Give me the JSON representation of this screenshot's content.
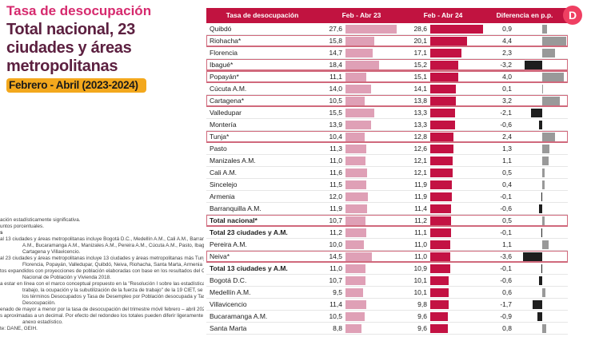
{
  "header": {
    "title": "Tasa de desocupación",
    "subtitle": "Total nacional, 23 ciudades y áreas metropolitanas",
    "period": "Febrero - Abril (2023-2024)"
  },
  "logo": {
    "letter": "D",
    "name": "DANE"
  },
  "table": {
    "columns": [
      "Tasa de desocupación",
      "Feb - Abr 23",
      "Feb - Abr 24",
      "Diferencia en p.p."
    ],
    "rows": [
      {
        "label": "Quibdó",
        "v23": "27,6",
        "v24": "28,6",
        "diff": "0,9",
        "bold": false,
        "highlight": false
      },
      {
        "label": "Riohacha*",
        "v23": "15,8",
        "v24": "20,1",
        "diff": "4,4",
        "bold": false,
        "highlight": true
      },
      {
        "label": "Florencia",
        "v23": "14,7",
        "v24": "17,1",
        "diff": "2,3",
        "bold": false,
        "highlight": false
      },
      {
        "label": "Ibagué*",
        "v23": "18,4",
        "v24": "15,2",
        "diff": "-3,2",
        "bold": false,
        "highlight": true
      },
      {
        "label": "Popayán*",
        "v23": "11,1",
        "v24": "15,1",
        "diff": "4,0",
        "bold": false,
        "highlight": true
      },
      {
        "label": "Cúcuta A.M.",
        "v23": "14,0",
        "v24": "14,1",
        "diff": "0,1",
        "bold": false,
        "highlight": false
      },
      {
        "label": "Cartagena*",
        "v23": "10,5",
        "v24": "13,8",
        "diff": "3,2",
        "bold": false,
        "highlight": true
      },
      {
        "label": "Valledupar",
        "v23": "15,5",
        "v24": "13,3",
        "diff": "-2,1",
        "bold": false,
        "highlight": false
      },
      {
        "label": "Montería",
        "v23": "13,9",
        "v24": "13,3",
        "diff": "-0,6",
        "bold": false,
        "highlight": false
      },
      {
        "label": "Tunja*",
        "v23": "10,4",
        "v24": "12,8",
        "diff": "2,4",
        "bold": false,
        "highlight": true
      },
      {
        "label": "Pasto",
        "v23": "11,3",
        "v24": "12,6",
        "diff": "1,3",
        "bold": false,
        "highlight": false
      },
      {
        "label": "Manizales A.M.",
        "v23": "11,0",
        "v24": "12,1",
        "diff": "1,1",
        "bold": false,
        "highlight": false
      },
      {
        "label": "Cali A.M.",
        "v23": "11,6",
        "v24": "12,1",
        "diff": "0,5",
        "bold": false,
        "highlight": false
      },
      {
        "label": "Sincelejo",
        "v23": "11,5",
        "v24": "11,9",
        "diff": "0,4",
        "bold": false,
        "highlight": false
      },
      {
        "label": "Armenia",
        "v23": "12,0",
        "v24": "11,9",
        "diff": "-0,1",
        "bold": false,
        "highlight": false
      },
      {
        "label": "Barranquilla A.M.",
        "v23": "11,9",
        "v24": "11,4",
        "diff": "-0,6",
        "bold": false,
        "highlight": false
      },
      {
        "label": "Total nacional*",
        "v23": "10,7",
        "v24": "11,2",
        "diff": "0,5",
        "bold": true,
        "highlight": true
      },
      {
        "label": "Total 23 ciudades y A.M.",
        "v23": "11,2",
        "v24": "11,1",
        "diff": "-0,1",
        "bold": true,
        "highlight": false
      },
      {
        "label": "Pereira A.M.",
        "v23": "10,0",
        "v24": "11,0",
        "diff": "1,1",
        "bold": false,
        "highlight": false
      },
      {
        "label": "Neiva*",
        "v23": "14,5",
        "v24": "11,0",
        "diff": "-3,6",
        "bold": false,
        "highlight": true
      },
      {
        "label": "Total 13 ciudades y A.M.",
        "v23": "11,0",
        "v24": "10,9",
        "diff": "-0,1",
        "bold": true,
        "highlight": false
      },
      {
        "label": "Bogotá D.C.",
        "v23": "10,7",
        "v24": "10,1",
        "diff": "-0,6",
        "bold": false,
        "highlight": false
      },
      {
        "label": "Medellín A.M.",
        "v23": "9,5",
        "v24": "10,1",
        "diff": "0,6",
        "bold": false,
        "highlight": false
      },
      {
        "label": "Villavicencio",
        "v23": "11,4",
        "v24": "9,8",
        "diff": "-1,7",
        "bold": false,
        "highlight": false
      },
      {
        "label": "Bucaramanga A.M.",
        "v23": "10,5",
        "v24": "9,6",
        "diff": "-0,9",
        "bold": false,
        "highlight": false
      },
      {
        "label": "Santa Marta",
        "v23": "8,8",
        "v24": "9,6",
        "diff": "0,8",
        "bold": false,
        "highlight": false
      }
    ]
  },
  "footnotes": {
    "lines": [
      {
        "text": "ación estadísticamente significativa.",
        "indent": false,
        "bold": false
      },
      {
        "text": "untos porcentuales.",
        "indent": false,
        "bold": false
      },
      {
        "text": "s",
        "indent": false,
        "bold": true
      },
      {
        "text": "al 13 ciudades y áreas metropolitanas incluye Bogotá D.C., Medellín A.M., Cali A.M., Barranquilla",
        "indent": false,
        "bold": false
      },
      {
        "text": "A.M., Bucaramanga A.M., Manizales A.M., Pereira A.M., Cúcuta A.M., Pasto, Ibagué, Montería,",
        "indent": true,
        "bold": false
      },
      {
        "text": "Cartagena y Villavicencio.",
        "indent": true,
        "bold": false
      },
      {
        "text": "al 23 ciudades y áreas metropolitanas incluye 13 ciudades y áreas metropolitanas más Tunja,",
        "indent": false,
        "bold": false
      },
      {
        "text": "Florencia, Popayán, Valledupar, Quibdó, Neiva, Riohacha, Santa Marta, Armenia y Sincelejo.",
        "indent": true,
        "bold": false
      },
      {
        "text": "tos expandidos con proyecciones de población elaboradas con base en los resultados del Censo",
        "indent": false,
        "bold": false
      },
      {
        "text": "Nacional de Población y Vivienda 2018.",
        "indent": true,
        "bold": false
      },
      {
        "text": "a estar en línea con el marco conceptual propuesto en la \"Resolución I sobre las estadísticas del",
        "indent": false,
        "bold": false
      },
      {
        "text": "trabajo, la ocupación y la subutilización de la fuerza de trabajo\" de la 19 CIET, se hace ajuste de",
        "indent": true,
        "bold": false
      },
      {
        "text": "los términos Desocupados y Tasa de Desempleo por Población desocupada y Tasa de",
        "indent": true,
        "bold": false
      },
      {
        "text": "Desocupación.",
        "indent": true,
        "bold": false
      },
      {
        "text": "enado de mayor a menor por la tasa de desocupación del trimestre móvil febrero – abril 2024.",
        "indent": false,
        "bold": false
      },
      {
        "text": "s aproximadas a un decimal. Por efecto del redondeo los totales pueden diferir ligeramente del",
        "indent": false,
        "bold": false
      },
      {
        "text": "anexo estadístico.",
        "indent": true,
        "bold": false
      },
      {
        "text": "te: DANE, GEIH.",
        "indent": false,
        "bold": false
      }
    ]
  },
  "colors": {
    "header_bg": "#c11340",
    "bar_2023": "#dfa0b6",
    "bar_2024": "#c31243",
    "diff_positive": "#999999",
    "diff_negative": "#1e1e1e",
    "highlight_border": "#d0697c",
    "title_pink": "#d62a6e",
    "title_maroon": "#5c2040",
    "period_yellow": "#f3a81d",
    "logo_pink": "#ef3f62"
  },
  "chart_data": {
    "type": "bar",
    "title": "Tasa de desocupación — Total nacional, 23 ciudades y áreas metropolitanas",
    "subtitle": "Febrero - Abril (2023-2024)",
    "orientation": "horizontal",
    "legend_position": "column-headers",
    "categories": [
      "Quibdó",
      "Riohacha*",
      "Florencia",
      "Ibagué*",
      "Popayán*",
      "Cúcuta A.M.",
      "Cartagena*",
      "Valledupar",
      "Montería",
      "Tunja*",
      "Pasto",
      "Manizales A.M.",
      "Cali A.M.",
      "Sincelejo",
      "Armenia",
      "Barranquilla A.M.",
      "Total nacional*",
      "Total 23 ciudades y A.M.",
      "Pereira A.M.",
      "Neiva*",
      "Total 13 ciudades y A.M.",
      "Bogotá D.C.",
      "Medellín A.M.",
      "Villavicencio",
      "Bucaramanga A.M.",
      "Santa Marta"
    ],
    "series": [
      {
        "name": "Feb - Abr 23",
        "values": [
          27.6,
          15.8,
          14.7,
          18.4,
          11.1,
          14.0,
          10.5,
          15.5,
          13.9,
          10.4,
          11.3,
          11.0,
          11.6,
          11.5,
          12.0,
          11.9,
          10.7,
          11.2,
          10.0,
          14.5,
          11.0,
          10.7,
          9.5,
          11.4,
          10.5,
          8.8
        ]
      },
      {
        "name": "Feb - Abr 24",
        "values": [
          28.6,
          20.1,
          17.1,
          15.2,
          15.1,
          14.1,
          13.8,
          13.3,
          13.3,
          12.8,
          12.6,
          12.1,
          12.1,
          11.9,
          11.9,
          11.4,
          11.2,
          11.1,
          11.0,
          11.0,
          10.9,
          10.1,
          10.1,
          9.8,
          9.6,
          9.6
        ]
      },
      {
        "name": "Diferencia en p.p.",
        "values": [
          0.9,
          4.4,
          2.3,
          -3.2,
          4.0,
          0.1,
          3.2,
          -2.1,
          -0.6,
          2.4,
          1.3,
          1.1,
          0.5,
          0.4,
          -0.1,
          -0.6,
          0.5,
          -0.1,
          1.1,
          -3.6,
          -0.1,
          -0.6,
          0.6,
          -1.7,
          -0.9,
          0.8
        ]
      }
    ],
    "xlim_rates": [
      0,
      30
    ],
    "xlim_diff": [
      -5,
      5
    ],
    "grid": false
  }
}
